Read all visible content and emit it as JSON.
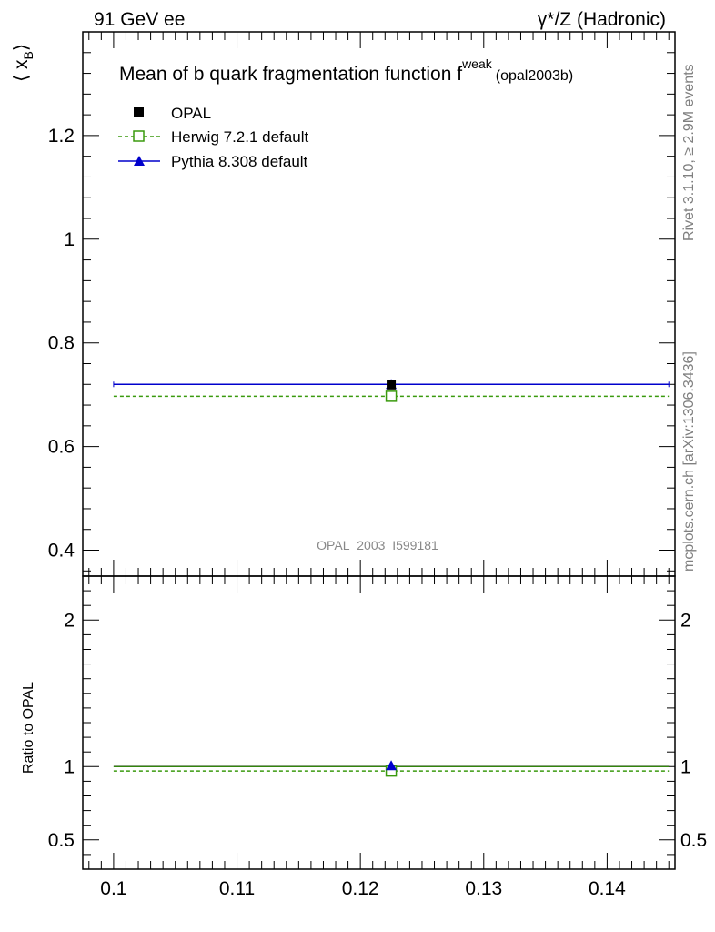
{
  "header": {
    "left": "91 GeV ee",
    "right": "γ*/Z (Hadronic)"
  },
  "side_text": {
    "rivet": "Rivet 3.1.10, ≥ 2.9M events",
    "mcplots": "mcplots.cern.ch [arXiv:1306.3436]"
  },
  "colors": {
    "opal": "#000000",
    "herwig": "#3a9a0e",
    "pythia": "#0000cc",
    "watermark": "#888888"
  },
  "chart_data": [
    {
      "type": "scatter",
      "title_main": "Mean of b quark fragmentation function f",
      "title_sup": "weak",
      "title_sub": "(opal2003b)",
      "watermark": "OPAL_2003_I599181",
      "ylabel": "⟨ x",
      "ylabel_sub": "B",
      "ylabel_end": "⟩",
      "xlim": [
        0.0975,
        0.1455
      ],
      "ylim": [
        0.35,
        1.4
      ],
      "yticks": [
        0.4,
        0.6,
        0.8,
        1,
        1.2
      ],
      "ytick_labels": [
        "0.4",
        "0.6",
        "0.8",
        "1",
        "1.2"
      ],
      "series": [
        {
          "name": "OPAL",
          "marker": "filled-square",
          "x": 0.1225,
          "y": 0.719,
          "xerr": [
            0.1225,
            0.1225
          ]
        },
        {
          "name": "Herwig 7.2.1 default",
          "marker": "open-square",
          "line": "dashed",
          "x": 0.1225,
          "y": 0.697,
          "xrange": [
            0.1,
            0.145
          ]
        },
        {
          "name": "Pythia 8.308 default",
          "marker": "filled-triangle",
          "line": "solid",
          "x": 0.1225,
          "y": 0.72,
          "xrange": [
            0.1,
            0.145
          ]
        }
      ]
    },
    {
      "type": "scatter",
      "ylabel": "Ratio to OPAL",
      "xlim": [
        0.0975,
        0.1455
      ],
      "ylim": [
        0.3,
        2.3
      ],
      "yticks": [
        0.5,
        1,
        2
      ],
      "ytick_labels": [
        "0.5",
        "1",
        "2"
      ],
      "xticks": [
        0.1,
        0.11,
        0.12,
        0.13,
        0.14
      ],
      "xtick_labels": [
        "0.1",
        "0.11",
        "0.12",
        "0.13",
        "0.14"
      ],
      "series": [
        {
          "name": "OPAL",
          "x": 0.1225,
          "y": 1.0
        },
        {
          "name": "Herwig 7.2.1 default",
          "x": 0.1225,
          "y": 0.97,
          "xrange": [
            0.1,
            0.145
          ]
        },
        {
          "name": "Pythia 8.308 default",
          "x": 0.1225,
          "y": 1.0,
          "xrange": [
            0.1,
            0.145
          ]
        }
      ]
    }
  ]
}
